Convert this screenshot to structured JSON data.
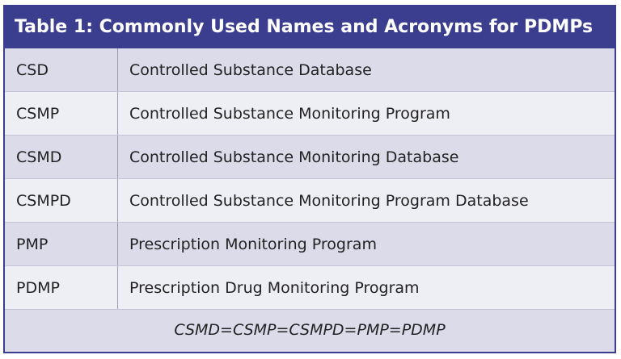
{
  "title": "Table 1: Commonly Used Names and Acronyms for PDMPs",
  "table": {
    "rows": [
      [
        "CSD",
        "Controlled Substance Database"
      ],
      [
        "CSMP",
        "Controlled Substance Monitoring Program"
      ],
      [
        "CSMD",
        "Controlled Substance Monitoring Database"
      ],
      [
        "CSMPD",
        "Controlled Substance Monitoring Program Database"
      ],
      [
        "PMP",
        "Prescription Monitoring Program"
      ],
      [
        "PDMP",
        "Prescription Drug Monitoring Program"
      ]
    ],
    "footer": "CSMD=CSMP=CSMPD=PMP=PDMP"
  }
}
